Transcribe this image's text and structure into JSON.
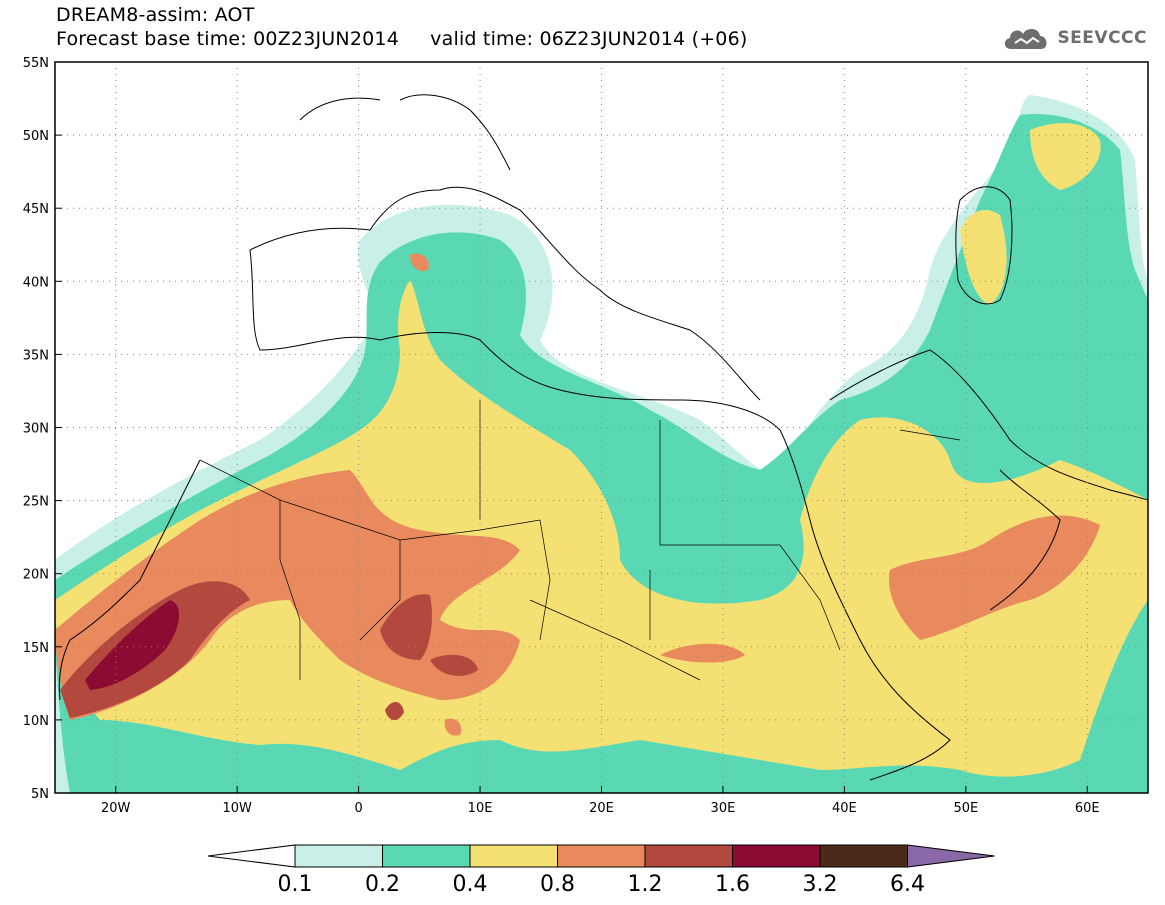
{
  "header": {
    "title_line1": "DREAM8-assim: AOT",
    "title_line2": "Forecast base time: 00Z23JUN2014     valid time: 06Z23JUN2014 (+06)",
    "logo_text": "SEEVCCC"
  },
  "map": {
    "lon_range": [
      -25,
      65
    ],
    "lat_range": [
      5,
      55
    ],
    "lat_ticks": [
      "5N",
      "10N",
      "15N",
      "20N",
      "25N",
      "30N",
      "35N",
      "40N",
      "45N",
      "50N",
      "55N"
    ],
    "lon_ticks": [
      "20W",
      "10W",
      "0",
      "10E",
      "20E",
      "30E",
      "40E",
      "50E",
      "60E"
    ],
    "lon_tick_values": [
      -20,
      -10,
      0,
      10,
      20,
      30,
      40,
      50,
      60
    ],
    "lat_tick_values": [
      5,
      10,
      15,
      20,
      25,
      30,
      35,
      40,
      45,
      50,
      55
    ],
    "gridlines": "dotted"
  },
  "legend": {
    "labels": [
      "0.1",
      "0.2",
      "0.4",
      "0.8",
      "1.2",
      "1.6",
      "3.2",
      "6.4"
    ],
    "colors": [
      "#ffffff",
      "#c8f0e8",
      "#5ad8b4",
      "#f5e173",
      "#e8895e",
      "#b3493e",
      "#8c0b33",
      "#4a2b1a",
      "#8a68a8"
    ]
  }
}
